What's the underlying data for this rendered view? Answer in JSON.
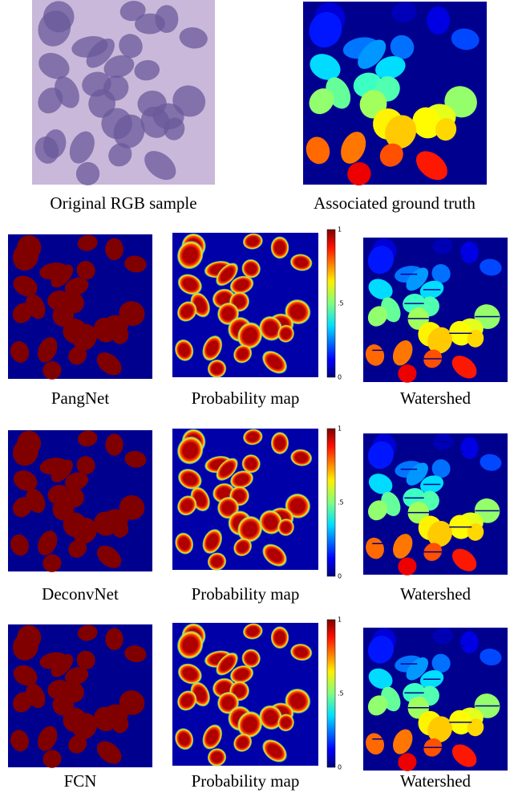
{
  "top": {
    "captions": [
      "Original RGB sample",
      "Associated ground truth"
    ]
  },
  "rows": [
    {
      "captions": [
        "PangNet",
        "Probability map",
        "Watershed"
      ],
      "colorbar_ticks": [
        "1",
        ".5",
        "0"
      ]
    },
    {
      "captions": [
        "DeconvNet",
        "Probability map",
        "Watershed"
      ],
      "colorbar_ticks": [
        "1",
        ".5",
        "0"
      ]
    },
    {
      "captions": [
        "FCN",
        "Probability map",
        "Watershed"
      ],
      "colorbar_ticks": [
        "1",
        ".5",
        "0"
      ]
    }
  ]
}
